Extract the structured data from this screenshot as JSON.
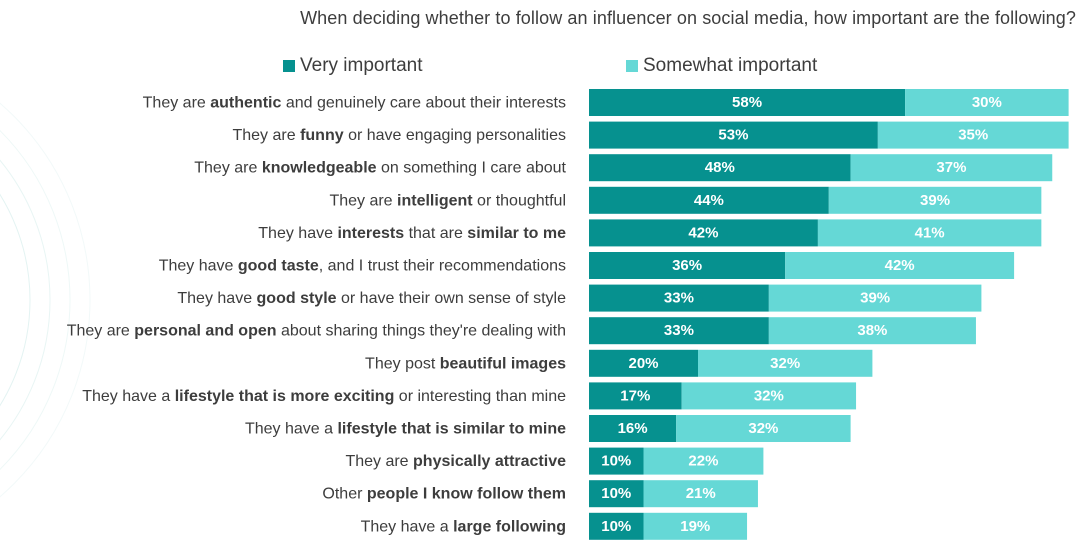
{
  "title": "When deciding whether to follow an influencer on social media, how important are the following?",
  "colors": {
    "very": "#06918f",
    "somewhat": "#65d8d6",
    "text": "#3d3d3d",
    "label": "#ffffff"
  },
  "legend": [
    {
      "name": "Very important"
    },
    {
      "name": "Somewhat important"
    }
  ],
  "chart_data": {
    "type": "bar",
    "orientation": "horizontal",
    "stacked": true,
    "title": "When deciding whether to follow an influencer on social media, how important are the following?",
    "xlim": [
      0,
      100
    ],
    "legend_position": "top",
    "grid": false,
    "categories": [
      [
        {
          "t": "They are ",
          "b": false
        },
        {
          "t": "authentic",
          "b": true
        },
        {
          "t": " and genuinely care about their interests",
          "b": false
        }
      ],
      [
        {
          "t": "They are ",
          "b": false
        },
        {
          "t": "funny",
          "b": true
        },
        {
          "t": " or have engaging personalities",
          "b": false
        }
      ],
      [
        {
          "t": "They are ",
          "b": false
        },
        {
          "t": "knowledgeable",
          "b": true
        },
        {
          "t": " on something I care about",
          "b": false
        }
      ],
      [
        {
          "t": "They are ",
          "b": false
        },
        {
          "t": "intelligent",
          "b": true
        },
        {
          "t": " or thoughtful",
          "b": false
        }
      ],
      [
        {
          "t": "They have ",
          "b": false
        },
        {
          "t": "interests",
          "b": true
        },
        {
          "t": " that are ",
          "b": false
        },
        {
          "t": "similar to me",
          "b": true
        }
      ],
      [
        {
          "t": "They have ",
          "b": false
        },
        {
          "t": "good taste",
          "b": true
        },
        {
          "t": ", and I trust their recommendations",
          "b": false
        }
      ],
      [
        {
          "t": "They have ",
          "b": false
        },
        {
          "t": "good style",
          "b": true
        },
        {
          "t": " or have their own sense of style",
          "b": false
        }
      ],
      [
        {
          "t": "They are ",
          "b": false
        },
        {
          "t": "personal and open",
          "b": true
        },
        {
          "t": " about sharing things they're dealing with",
          "b": false
        }
      ],
      [
        {
          "t": "They post ",
          "b": false
        },
        {
          "t": "beautiful images",
          "b": true
        }
      ],
      [
        {
          "t": "They have a ",
          "b": false
        },
        {
          "t": "lifestyle that is more exciting",
          "b": true
        },
        {
          "t": " or interesting than mine",
          "b": false
        }
      ],
      [
        {
          "t": "They have a ",
          "b": false
        },
        {
          "t": "lifestyle that is similar to mine",
          "b": true
        }
      ],
      [
        {
          "t": "They are ",
          "b": false
        },
        {
          "t": "physically attractive",
          "b": true
        }
      ],
      [
        {
          "t": "Other ",
          "b": false
        },
        {
          "t": "people I know follow them",
          "b": true
        }
      ],
      [
        {
          "t": "They have a ",
          "b": false
        },
        {
          "t": "large following",
          "b": true
        }
      ]
    ],
    "series": [
      {
        "name": "Very important",
        "values": [
          58,
          53,
          48,
          44,
          42,
          36,
          33,
          33,
          20,
          17,
          16,
          10,
          10,
          10
        ]
      },
      {
        "name": "Somewhat important",
        "values": [
          30,
          35,
          37,
          39,
          41,
          42,
          39,
          38,
          32,
          32,
          32,
          22,
          21,
          19
        ]
      }
    ]
  }
}
